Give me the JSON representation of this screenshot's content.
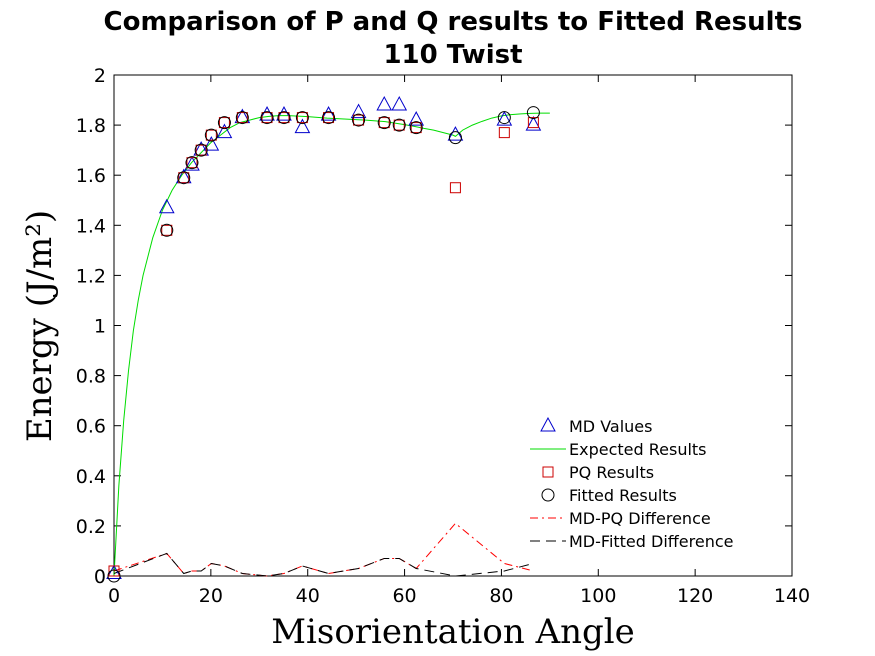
{
  "chart_data": {
    "type": "line",
    "title": "Comparison of P and Q results to Fitted Results",
    "subtitle": "110 Twist",
    "xlabel": "Misorientation Angle",
    "ylabel": "Energy (J/m²)",
    "xlim": [
      0,
      140
    ],
    "ylim": [
      0,
      2
    ],
    "xticks": [
      "0",
      "20",
      "40",
      "60",
      "80",
      "100",
      "120",
      "140"
    ],
    "yticks": [
      "0",
      "0.2",
      "0.4",
      "0.6",
      "0.8",
      "1",
      "1.2",
      "1.4",
      "1.6",
      "1.8",
      "2"
    ],
    "grid": false,
    "legend_position": "lower-right",
    "colors": {
      "md": "#0000cc",
      "expected": "#00dd00",
      "pq": "#cc0000",
      "fitted": "#000000",
      "md_pq_diff": "#ff0000",
      "md_fitted_diff": "#000000"
    },
    "series": [
      {
        "name": "MD Values",
        "style": "triangle-marker",
        "x": [
          0,
          10.9,
          14.4,
          16.1,
          18.0,
          20.1,
          22.8,
          26.5,
          31.6,
          35.1,
          38.9,
          44.3,
          50.5,
          55.8,
          58.9,
          62.4,
          70.5,
          80.6,
          86.6
        ],
        "y": [
          0.01,
          1.47,
          1.59,
          1.64,
          1.7,
          1.72,
          1.77,
          1.83,
          1.84,
          1.84,
          1.79,
          1.84,
          1.85,
          1.88,
          1.88,
          1.82,
          1.76,
          1.82,
          1.8
        ]
      },
      {
        "name": "Expected Results",
        "style": "line",
        "x": [
          0,
          1,
          2,
          3,
          4,
          5,
          6,
          8,
          10,
          12,
          14,
          16,
          18,
          20,
          22,
          24,
          26,
          28,
          30,
          32,
          34,
          36,
          38,
          40,
          42,
          44,
          46,
          48,
          50,
          52,
          54,
          56,
          58,
          60,
          62,
          64,
          66,
          68,
          70,
          70.5,
          72,
          74,
          76,
          78,
          80,
          82,
          84,
          86,
          88,
          90
        ],
        "y": [
          0,
          0.36,
          0.62,
          0.82,
          0.98,
          1.1,
          1.2,
          1.35,
          1.46,
          1.54,
          1.6,
          1.65,
          1.69,
          1.73,
          1.76,
          1.79,
          1.81,
          1.82,
          1.83,
          1.835,
          1.838,
          1.838,
          1.836,
          1.834,
          1.831,
          1.828,
          1.826,
          1.824,
          1.822,
          1.82,
          1.817,
          1.814,
          1.808,
          1.802,
          1.795,
          1.787,
          1.78,
          1.77,
          1.76,
          1.755,
          1.78,
          1.8,
          1.815,
          1.828,
          1.837,
          1.842,
          1.845,
          1.847,
          1.848,
          1.848
        ]
      },
      {
        "name": "PQ Results",
        "style": "square-marker",
        "x": [
          0,
          10.9,
          14.4,
          16.1,
          18.0,
          20.1,
          22.8,
          26.5,
          31.6,
          35.1,
          38.9,
          44.3,
          50.5,
          55.8,
          58.9,
          62.4,
          70.5,
          80.6,
          86.6
        ],
        "y": [
          0.02,
          1.38,
          1.59,
          1.65,
          1.7,
          1.76,
          1.81,
          1.83,
          1.83,
          1.83,
          1.83,
          1.83,
          1.82,
          1.81,
          1.8,
          1.79,
          1.55,
          1.77,
          1.81
        ]
      },
      {
        "name": "Fitted Results",
        "style": "circle-marker",
        "x": [
          0,
          10.9,
          14.4,
          16.1,
          18.0,
          20.1,
          22.8,
          26.5,
          31.6,
          35.1,
          38.9,
          44.3,
          50.5,
          55.8,
          58.9,
          62.4,
          70.5,
          80.6,
          86.6
        ],
        "y": [
          0.0,
          1.38,
          1.59,
          1.65,
          1.7,
          1.76,
          1.81,
          1.83,
          1.83,
          1.83,
          1.83,
          1.83,
          1.82,
          1.81,
          1.8,
          1.79,
          1.75,
          1.83,
          1.85
        ]
      },
      {
        "name": "MD-PQ Difference",
        "style": "dashdot-line",
        "x": [
          0,
          10.9,
          14.4,
          16.1,
          18.0,
          20.1,
          22.8,
          26.5,
          31.6,
          35.1,
          38.9,
          44.3,
          50.5,
          55.8,
          58.9,
          62.4,
          70.5,
          80.6,
          86.6
        ],
        "y": [
          0.02,
          0.09,
          0.01,
          0.02,
          0.02,
          0.05,
          0.04,
          0.01,
          0.0,
          0.01,
          0.04,
          0.01,
          0.03,
          0.07,
          0.07,
          0.03,
          0.21,
          0.05,
          0.02
        ]
      },
      {
        "name": "MD-Fitted Difference",
        "style": "dash-line",
        "x": [
          0,
          10.9,
          14.4,
          16.1,
          18.0,
          20.1,
          22.8,
          26.5,
          31.6,
          35.1,
          38.9,
          44.3,
          50.5,
          55.8,
          58.9,
          62.4,
          70.5,
          80.6,
          86.6
        ],
        "y": [
          0.01,
          0.09,
          0.01,
          0.02,
          0.02,
          0.05,
          0.04,
          0.01,
          0.0,
          0.01,
          0.04,
          0.01,
          0.03,
          0.07,
          0.07,
          0.03,
          0.0,
          0.02,
          0.05
        ]
      }
    ]
  }
}
